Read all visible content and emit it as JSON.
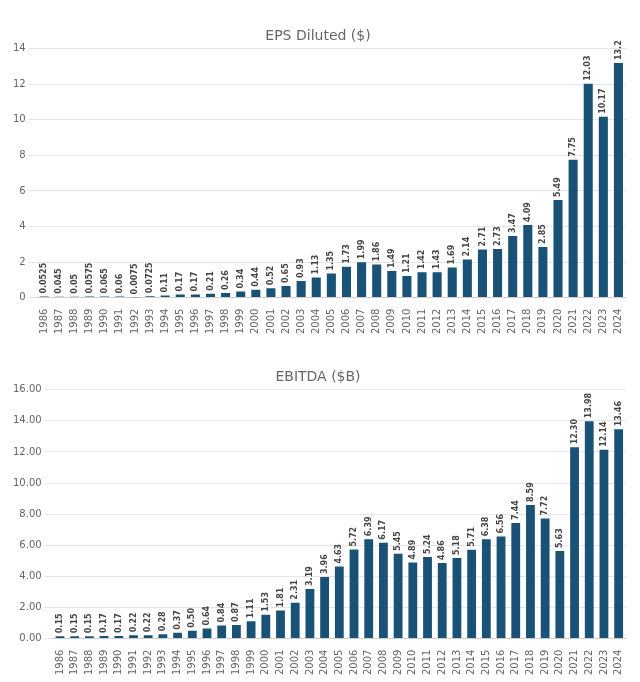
{
  "chart_data": [
    {
      "type": "bar",
      "title": "EPS Diluted ($)",
      "categories": [
        "1986",
        "1987",
        "1988",
        "1989",
        "1990",
        "1991",
        "1992",
        "1993",
        "1994",
        "1995",
        "1996",
        "1997",
        "1998",
        "1999",
        "2000",
        "2001",
        "2002",
        "2003",
        "2004",
        "2005",
        "2006",
        "2007",
        "2008",
        "2009",
        "2010",
        "2011",
        "2012",
        "2013",
        "2014",
        "2015",
        "2016",
        "2017",
        "2018",
        "2019",
        "2020",
        "2021",
        "2022",
        "2023",
        "2024"
      ],
      "values": [
        0.0525,
        0.045,
        0.05,
        0.0575,
        0.065,
        0.06,
        0.0075,
        0.0725,
        0.11,
        0.17,
        0.17,
        0.21,
        0.26,
        0.34,
        0.44,
        0.52,
        0.65,
        0.93,
        1.13,
        1.35,
        1.73,
        1.99,
        1.86,
        1.49,
        1.21,
        1.42,
        1.43,
        1.69,
        2.14,
        2.71,
        2.73,
        3.47,
        4.09,
        2.85,
        5.49,
        7.75,
        12.03,
        10.17,
        13.2
      ],
      "color": "#1a5276",
      "ylim": [
        0,
        14
      ],
      "yticks": [
        0,
        2,
        4,
        6,
        8,
        10,
        12,
        14
      ],
      "grid": true,
      "data_labels": true
    },
    {
      "type": "bar",
      "title": "EBITDA ($B)",
      "categories": [
        "1986",
        "1987",
        "1988",
        "1989",
        "1990",
        "1991",
        "1992",
        "1993",
        "1994",
        "1995",
        "1996",
        "1997",
        "1998",
        "1999",
        "2000",
        "2001",
        "2002",
        "2003",
        "2004",
        "2005",
        "2006",
        "2007",
        "2008",
        "2009",
        "2010",
        "2011",
        "2012",
        "2013",
        "2014",
        "2015",
        "2016",
        "2017",
        "2018",
        "2019",
        "2020",
        "2021",
        "2022",
        "2023",
        "2024"
      ],
      "values": [
        0.15,
        0.15,
        0.15,
        0.17,
        0.17,
        0.22,
        0.22,
        0.28,
        0.37,
        0.5,
        0.64,
        0.84,
        0.87,
        1.11,
        1.53,
        1.81,
        2.31,
        3.19,
        3.96,
        4.63,
        5.72,
        6.39,
        6.17,
        5.45,
        4.89,
        5.24,
        4.86,
        5.18,
        5.71,
        6.38,
        6.56,
        7.44,
        8.59,
        7.72,
        5.63,
        12.3,
        13.98,
        12.14,
        13.46
      ],
      "value_labels": [
        "0.15",
        "0.15",
        "0.15",
        "0.17",
        "0.17",
        "0.22",
        "0.22",
        "0.28",
        "0.37",
        "0.50",
        "0.64",
        "0.84",
        "0.87",
        "1.11",
        "1.53",
        "1.81",
        "2.31",
        "3.19",
        "3.96",
        "4.63",
        "5.72",
        "6.39",
        "6.17",
        "5.45",
        "4.89",
        "5.24",
        "4.86",
        "5.18",
        "5.71",
        "6.38",
        "6.56",
        "7.44",
        "8.59",
        "7.72",
        "5.63",
        "12.30",
        "13.98",
        "12.14",
        "13.46"
      ],
      "color": "#1a5276",
      "ylim": [
        0,
        16
      ],
      "yticks": [
        {
          "value": 0,
          "label": "0.00"
        },
        {
          "value": 2,
          "label": "2.00"
        },
        {
          "value": 4,
          "label": "4.00"
        },
        {
          "value": 6,
          "label": "6.00"
        },
        {
          "value": 8,
          "label": "8.00"
        },
        {
          "value": 10,
          "label": "10.00"
        },
        {
          "value": 12,
          "label": "12.00"
        },
        {
          "value": 14,
          "label": "14.00"
        },
        {
          "value": 16,
          "label": "16.00"
        }
      ],
      "grid": true,
      "data_labels": true
    }
  ]
}
